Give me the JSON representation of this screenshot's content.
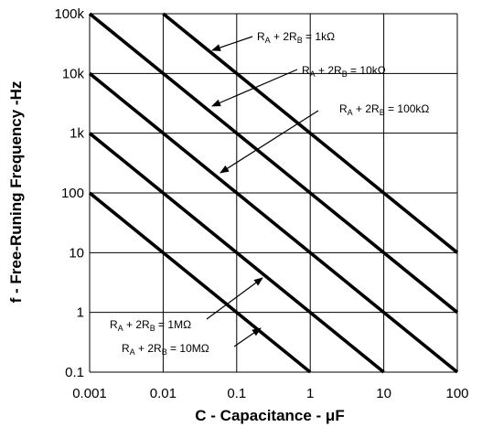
{
  "chart_data": {
    "type": "line",
    "xlabel": "C - Capacitance  - μF",
    "ylabel": "f - Free-Runing  Frequency  -Hz",
    "x_scale": "log",
    "y_scale": "log",
    "xlim": [
      0.001,
      100
    ],
    "ylim": [
      0.1,
      100000
    ],
    "x_ticks": [
      "0.001",
      "0.01",
      "0.1",
      "1",
      "10",
      "100"
    ],
    "y_ticks": [
      "100k",
      "10k",
      "1k",
      "100",
      "10",
      "1",
      "0.1"
    ],
    "grid": true,
    "series": [
      {
        "name": "RA + 2RB = 1kΩ",
        "label_parts": [
          "R",
          "A",
          " + 2R",
          "B",
          " = 1kΩ"
        ],
        "x": [
          0.01,
          100
        ],
        "y": [
          100000,
          10
        ]
      },
      {
        "name": "RA + 2RB = 10kΩ",
        "label_parts": [
          "R",
          "A",
          " + 2R",
          "B",
          " = 10kΩ"
        ],
        "x": [
          0.001,
          100
        ],
        "y": [
          100000,
          1
        ]
      },
      {
        "name": "RA + 2RB = 100kΩ",
        "label_parts": [
          "R",
          "A",
          " + 2R",
          "B",
          " = 100kΩ"
        ],
        "x": [
          0.001,
          100
        ],
        "y": [
          10000,
          0.1
        ]
      },
      {
        "name": "RA + 2RB = 1MΩ",
        "label_parts": [
          "R",
          "A",
          " + 2R",
          "B",
          " = 1MΩ"
        ],
        "x": [
          0.001,
          10
        ],
        "y": [
          1000,
          0.1
        ]
      },
      {
        "name": "RA + 2RB = 10MΩ",
        "label_parts": [
          "R",
          "A",
          " + 2R",
          "B",
          " = 10MΩ"
        ],
        "x": [
          0.001,
          1
        ],
        "y": [
          100,
          0.1
        ]
      }
    ]
  }
}
